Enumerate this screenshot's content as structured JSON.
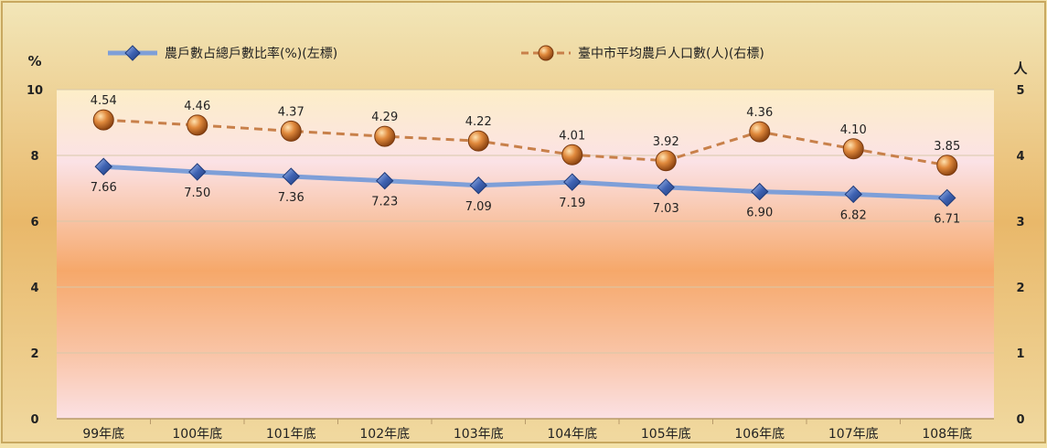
{
  "chart_data": {
    "type": "line",
    "title": "",
    "categories": [
      "99年底",
      "100年底",
      "101年底",
      "102年底",
      "103年底",
      "104年底",
      "105年底",
      "106年底",
      "107年底",
      "108年底"
    ],
    "y_left": {
      "unit": "%",
      "ticks": [
        0,
        2,
        4,
        6,
        8,
        10
      ],
      "range": [
        0,
        10
      ]
    },
    "y_right": {
      "unit": "人",
      "ticks": [
        0,
        1,
        2,
        3,
        4,
        5
      ],
      "range": [
        0,
        5
      ]
    },
    "series": [
      {
        "name": "農戶數占總戶數比率(%)(左標)",
        "axis": "left",
        "color": "#5b7fc4",
        "marker": "diamond",
        "values": [
          7.66,
          7.5,
          7.36,
          7.23,
          7.09,
          7.19,
          7.03,
          6.9,
          6.82,
          6.71
        ],
        "labels": [
          "7.66",
          "7.50",
          "7.36",
          "7.23",
          "7.09",
          "7.19",
          "7.03",
          "6.90",
          "6.82",
          "6.71"
        ]
      },
      {
        "name": "臺中市平均農戶人口數(人)(右標)",
        "axis": "right",
        "color": "#c8804a",
        "marker": "circle",
        "values": [
          4.54,
          4.46,
          4.37,
          4.29,
          4.22,
          4.01,
          3.92,
          4.36,
          4.1,
          3.85
        ],
        "labels": [
          "4.54",
          "4.46",
          "4.37",
          "4.29",
          "4.22",
          "4.01",
          "3.92",
          "4.36",
          "4.10",
          "3.85"
        ]
      }
    ],
    "legend_position": "top",
    "grid": true
  }
}
